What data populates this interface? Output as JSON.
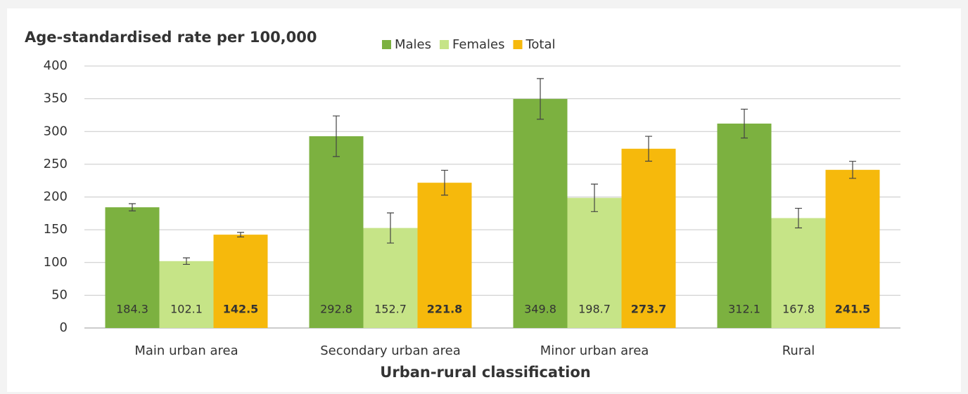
{
  "chart_data": {
    "type": "bar",
    "title": "Age-standardised rate per 100,000",
    "x_label": "Urban-rural classification",
    "categories": [
      "Main urban area",
      "Secondary urban area",
      "Minor urban area",
      "Rural"
    ],
    "series": [
      {
        "name": "Males",
        "color": "#7cb140",
        "values": [
          184.3,
          292.8,
          349.8,
          312.1
        ],
        "errors": [
          5.5,
          31,
          31,
          22
        ]
      },
      {
        "name": "Females",
        "color": "#c6e487",
        "values": [
          102.1,
          152.7,
          198.7,
          167.8
        ],
        "errors": [
          5,
          23,
          21,
          15
        ]
      },
      {
        "name": "Total",
        "color": "#f6b90c",
        "values": [
          142.5,
          221.8,
          273.7,
          241.5
        ],
        "errors": [
          3.5,
          19,
          19,
          13
        ]
      }
    ],
    "ylim": [
      0,
      400
    ],
    "yticks": [
      0,
      50,
      100,
      150,
      200,
      250,
      300,
      350,
      400
    ],
    "grid": true
  }
}
